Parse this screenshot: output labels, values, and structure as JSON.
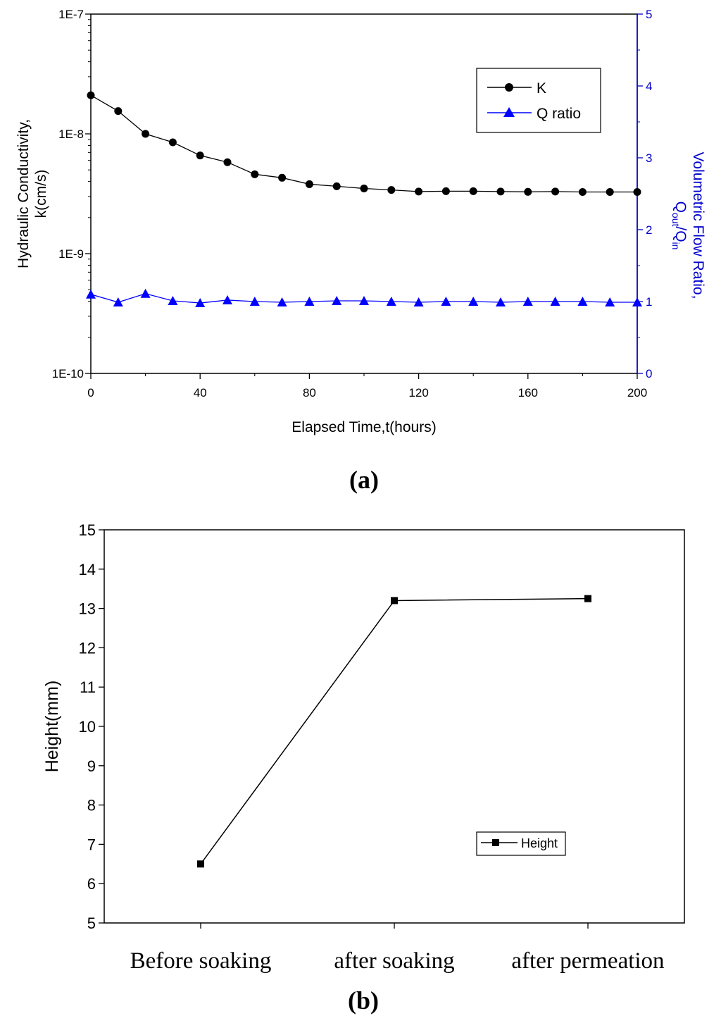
{
  "chart_data": [
    {
      "type": "line",
      "panel_label": "(a)",
      "xlabel": "Elapsed Time,t(hours)",
      "xlim": [
        0,
        200
      ],
      "xticks": [
        0,
        40,
        80,
        120,
        160,
        200
      ],
      "ylabel_left": [
        "Hydraulic Conductivity,",
        "k(cm/s)"
      ],
      "yscale_left": "log",
      "ylim_left": [
        1e-10,
        1e-07
      ],
      "yticks_left": [
        "1E-10",
        "1E-9",
        "1E-8",
        "1E-7"
      ],
      "ylabel_right": "Volumetric Flow Ratio, Qout/Qin",
      "ylabel_right_parts": {
        "prefix": "Volumetric Flow Ratio,",
        "q1": "Q",
        "sub1": "out",
        "slash": "/Q",
        "sub2": "in"
      },
      "ylim_right": [
        0,
        5
      ],
      "yticks_right": [
        "0",
        "1",
        "2",
        "3",
        "4",
        "5"
      ],
      "right_axis_color": "#0000cc",
      "legend_position": "top-right",
      "x": [
        0,
        10,
        20,
        30,
        40,
        50,
        60,
        70,
        80,
        90,
        100,
        110,
        120,
        130,
        140,
        150,
        160,
        170,
        180,
        190,
        200
      ],
      "series": [
        {
          "name": "K",
          "axis": "left",
          "marker": "circle",
          "color": "#000000",
          "values": [
            2.1e-08,
            1.55e-08,
            1e-08,
            8.5e-09,
            6.6e-09,
            5.8e-09,
            4.6e-09,
            4.3e-09,
            3.8e-09,
            3.65e-09,
            3.5e-09,
            3.4e-09,
            3.3e-09,
            3.32e-09,
            3.32e-09,
            3.3e-09,
            3.28e-09,
            3.3e-09,
            3.27e-09,
            3.27e-09,
            3.27e-09
          ]
        },
        {
          "name": "Q ratio",
          "axis": "right",
          "marker": "triangle",
          "color": "#0000ff",
          "values": [
            1.1,
            0.99,
            1.11,
            1.01,
            0.98,
            1.02,
            1.0,
            0.99,
            1.0,
            1.01,
            1.01,
            1.0,
            0.99,
            1.0,
            1.0,
            0.99,
            1.0,
            1.0,
            1.0,
            0.99,
            0.99
          ]
        }
      ]
    },
    {
      "type": "line",
      "panel_label": "(b)",
      "categories": [
        "Before soaking",
        "after soaking",
        "after permeation"
      ],
      "ylabel": "Height(mm)",
      "ylim": [
        5,
        15
      ],
      "yticks": [
        "5",
        "6",
        "7",
        "8",
        "9",
        "10",
        "11",
        "12",
        "13",
        "14",
        "15"
      ],
      "legend_position": "bottom-right",
      "series": [
        {
          "name": "Height",
          "marker": "square",
          "color": "#000000",
          "values": [
            6.5,
            13.2,
            13.25
          ]
        }
      ]
    }
  ]
}
